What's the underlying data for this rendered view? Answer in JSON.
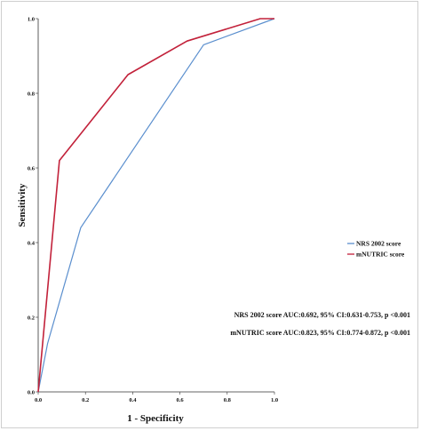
{
  "chart_data": {
    "type": "line",
    "xlabel": "1 - Specificity",
    "ylabel": "Sensitivity",
    "xlim": [
      0,
      1
    ],
    "ylim": [
      0,
      1
    ],
    "x_ticks": [
      "0.0",
      "0.2",
      "0.4",
      "0.6",
      "0.8",
      "1.0"
    ],
    "y_ticks": [
      "0.0",
      "0.2",
      "0.4",
      "0.6",
      "0.8",
      "1.0"
    ],
    "grid": false,
    "legend_position": "right",
    "series": [
      {
        "name": "NRS 2002 score",
        "color": "#5b8fce",
        "points": [
          [
            0,
            0
          ],
          [
            0.04,
            0.13
          ],
          [
            0.18,
            0.44
          ],
          [
            0.7,
            0.93
          ],
          [
            1.0,
            1.0
          ]
        ]
      },
      {
        "name": "mNUTRIC score",
        "color": "#c2213a",
        "points": [
          [
            0,
            0
          ],
          [
            0.09,
            0.62
          ],
          [
            0.38,
            0.85
          ],
          [
            0.63,
            0.94
          ],
          [
            0.94,
            1.0
          ],
          [
            1.0,
            1.0
          ]
        ]
      }
    ],
    "annotations": [
      "NRS 2002 score AUC:0.692, 95% CI:0.631-0.753, p <0.001",
      "mNUTRIC score AUC:0.823, 95% CI:0.774-0.872, p <0.001"
    ]
  }
}
